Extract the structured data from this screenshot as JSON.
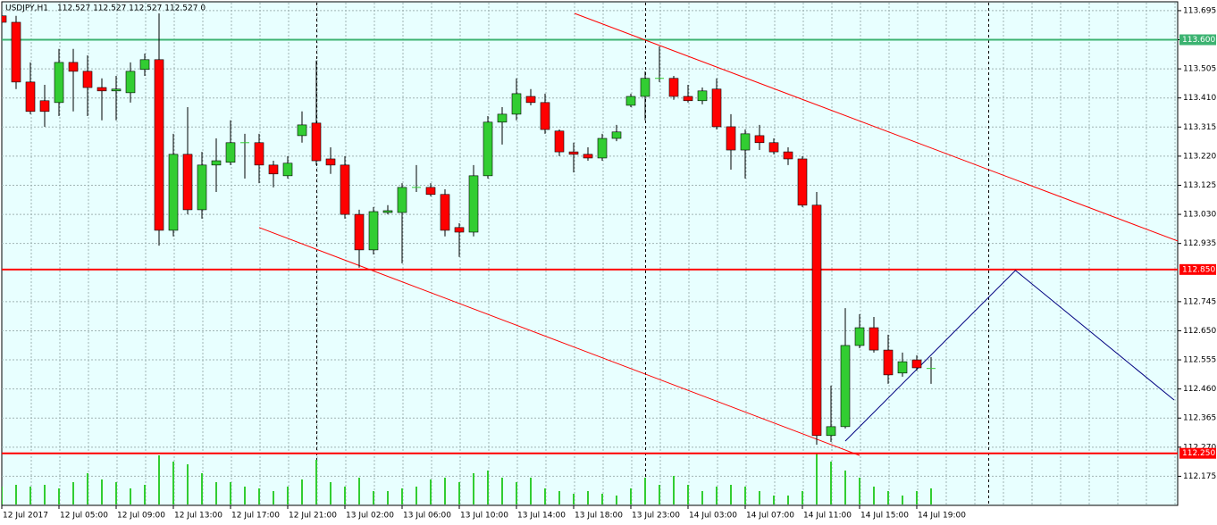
{
  "chart_data": {
    "type": "candlestick",
    "title": "USDJPY,H1",
    "info": "112.527 112.527 112.527 112.527  0",
    "ohlc": [
      [
        113.678,
        113.686,
        113.643,
        113.657
      ],
      [
        113.657,
        113.678,
        113.439,
        113.462
      ],
      [
        113.462,
        113.526,
        113.357,
        113.366
      ],
      [
        113.401,
        113.453,
        113.316,
        113.366
      ],
      [
        113.395,
        113.57,
        113.351,
        113.526
      ],
      [
        113.526,
        113.57,
        113.366,
        113.497
      ],
      [
        113.497,
        113.549,
        113.351,
        113.444
      ],
      [
        113.444,
        113.474,
        113.337,
        113.433
      ],
      [
        113.433,
        113.482,
        113.337,
        113.439
      ],
      [
        113.427,
        113.526,
        113.395,
        113.497
      ],
      [
        113.503,
        113.555,
        113.482,
        113.535
      ],
      [
        113.535,
        113.686,
        112.928,
        112.978
      ],
      [
        112.978,
        113.293,
        112.958,
        113.226
      ],
      [
        113.226,
        113.38,
        113.03,
        113.045
      ],
      [
        113.045,
        113.234,
        113.016,
        113.191
      ],
      [
        113.191,
        113.278,
        113.103,
        113.205
      ],
      [
        113.2,
        113.337,
        113.191,
        113.264
      ],
      [
        113.264,
        113.293,
        113.147,
        113.264
      ],
      [
        113.264,
        113.293,
        113.132,
        113.191
      ],
      [
        113.191,
        113.205,
        113.118,
        113.162
      ],
      [
        113.156,
        113.22,
        113.147,
        113.197
      ],
      [
        113.287,
        113.366,
        113.264,
        113.322
      ],
      [
        113.328,
        113.532,
        113.191,
        113.205
      ],
      [
        113.211,
        113.249,
        113.162,
        113.191
      ],
      [
        113.191,
        113.22,
        113.016,
        113.03
      ],
      [
        113.03,
        113.045,
        112.856,
        112.914
      ],
      [
        112.914,
        113.054,
        112.899,
        113.039
      ],
      [
        113.036,
        113.06,
        113.03,
        113.042
      ],
      [
        113.036,
        113.132,
        112.87,
        113.118
      ],
      [
        113.118,
        113.191,
        113.103,
        113.118
      ],
      [
        113.118,
        113.132,
        113.089,
        113.095
      ],
      [
        113.095,
        113.112,
        112.958,
        112.978
      ],
      [
        112.987,
        113.001,
        112.891,
        112.972
      ],
      [
        112.972,
        113.191,
        112.958,
        113.156
      ],
      [
        113.156,
        113.351,
        113.147,
        113.331
      ],
      [
        113.331,
        113.38,
        113.258,
        113.357
      ],
      [
        113.357,
        113.474,
        113.337,
        113.424
      ],
      [
        113.415,
        113.439,
        113.386,
        113.395
      ],
      [
        113.395,
        113.424,
        113.293,
        113.307
      ],
      [
        113.302,
        113.307,
        113.22,
        113.234
      ],
      [
        113.234,
        113.264,
        113.167,
        113.226
      ],
      [
        113.226,
        113.249,
        113.205,
        113.214
      ],
      [
        113.214,
        113.293,
        113.205,
        113.278
      ],
      [
        113.278,
        113.322,
        113.269,
        113.299
      ],
      [
        113.386,
        113.424,
        113.38,
        113.415
      ],
      [
        113.415,
        113.497,
        113.337,
        113.474
      ],
      [
        113.474,
        113.578,
        113.462,
        113.474
      ],
      [
        113.474,
        113.482,
        113.404,
        113.415
      ],
      [
        113.415,
        113.453,
        113.395,
        113.401
      ],
      [
        113.401,
        113.444,
        113.389,
        113.433
      ],
      [
        113.439,
        113.474,
        113.307,
        113.316
      ],
      [
        113.316,
        113.357,
        113.176,
        113.24
      ],
      [
        113.24,
        113.307,
        113.147,
        113.293
      ],
      [
        113.287,
        113.322,
        113.24,
        113.264
      ],
      [
        113.264,
        113.278,
        113.226,
        113.234
      ],
      [
        113.234,
        113.249,
        113.191,
        113.211
      ],
      [
        113.211,
        113.22,
        113.054,
        113.06
      ],
      [
        113.06,
        113.103,
        112.278,
        112.308
      ],
      [
        112.308,
        112.471,
        112.287,
        112.337
      ],
      [
        112.337,
        112.724,
        112.331,
        112.602
      ],
      [
        112.602,
        112.704,
        112.593,
        112.66
      ],
      [
        112.66,
        112.695,
        112.579,
        112.587
      ],
      [
        112.587,
        112.637,
        112.477,
        112.506
      ],
      [
        112.512,
        112.579,
        112.5,
        112.549
      ],
      [
        112.555,
        112.57,
        112.52,
        112.529
      ],
      [
        112.527,
        112.564,
        112.477,
        112.527
      ]
    ],
    "volumes": [
      20,
      22,
      20,
      22,
      18,
      25,
      35,
      28,
      25,
      18,
      22,
      55,
      48,
      45,
      35,
      25,
      25,
      20,
      18,
      15,
      20,
      28,
      50,
      25,
      20,
      30,
      15,
      15,
      18,
      20,
      28,
      30,
      25,
      35,
      38,
      30,
      25,
      30,
      18,
      15,
      12,
      15,
      12,
      10,
      18,
      30,
      22,
      32,
      22,
      15,
      20,
      22,
      20,
      15,
      10,
      10,
      15,
      58,
      48,
      38,
      30,
      20,
      15,
      10,
      15,
      18
    ],
    "vlim": [
      0,
      562
    ],
    "ylim": [
      112.083,
      113.721
    ],
    "yticks": [
      113.695,
      {
        "value": 113.6,
        "label": "113.600"
      },
      113.505,
      {
        "value": 113.41,
        "label": "113.410"
      },
      113.315,
      {
        "value": 113.22,
        "label": "113.220"
      },
      113.125,
      {
        "value": 113.03,
        "label": "113.030"
      },
      112.935,
      112.745,
      {
        "value": 112.65,
        "label": "112.650"
      },
      112.555,
      {
        "value": 112.46,
        "label": "112.460"
      },
      112.365,
      {
        "value": 112.27,
        "label": "112.270"
      },
      112.175
    ],
    "levels": [
      {
        "value": 113.6,
        "label": "113.600",
        "color": "#3cb371"
      },
      {
        "value": 112.85,
        "label": "112.850",
        "color": "#ff0000"
      },
      {
        "value": 112.25,
        "label": "112.250",
        "color": "#ff0000"
      }
    ],
    "trendlines": [
      {
        "color": "#ff0000",
        "x": [
          40.06,
          82.25
        ],
        "y": [
          113.686,
          112.943
        ]
      },
      {
        "color": "#ff0000",
        "x": [
          18,
          60
        ],
        "y": [
          112.987,
          112.243
        ]
      },
      {
        "color": "#000080",
        "x": [
          59,
          70.9,
          82
        ],
        "y": [
          112.29,
          112.847,
          112.424
        ]
      }
    ],
    "period_separators": [
      22,
      45,
      69
    ],
    "x_labels": [
      "12 Jul 2017",
      "12 Jul 05:00",
      "12 Jul 09:00",
      "12 Jul 13:00",
      "12 Jul 17:00",
      "12 Jul 21:00",
      "13 Jul 02:00",
      "13 Jul 06:00",
      "13 Jul 10:00",
      "13 Jul 14:00",
      "13 Jul 18:00",
      "13 Jul 23:00",
      "14 Jul 03:00",
      "14 Jul 07:00",
      "14 Jul 11:00",
      "14 Jul 15:00",
      "14 Jul 19:00"
    ],
    "up_color": "#32cd32",
    "down_color": "#ff0000",
    "volume_color": "#32cd32",
    "grid": true
  }
}
